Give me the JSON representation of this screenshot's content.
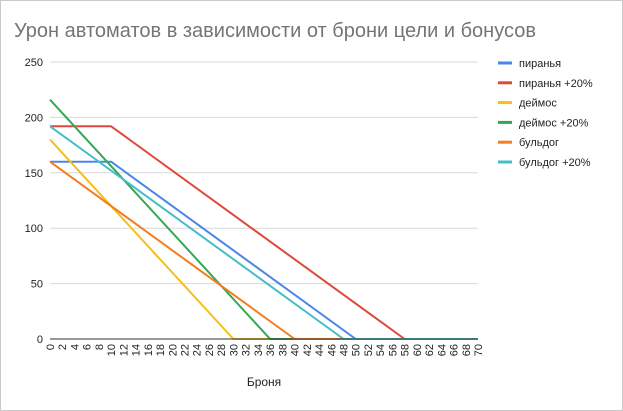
{
  "chart_data": {
    "type": "line",
    "title": "Урон автоматов в зависимости от брони цели и бонусов",
    "xlabel": "Броня",
    "ylabel": "",
    "xlim": [
      0,
      70
    ],
    "ylim": [
      0,
      250
    ],
    "x_ticks": [
      0,
      2,
      4,
      6,
      8,
      10,
      12,
      14,
      16,
      18,
      20,
      22,
      24,
      26,
      28,
      30,
      32,
      34,
      36,
      38,
      40,
      42,
      44,
      46,
      48,
      50,
      52,
      54,
      56,
      58,
      60,
      62,
      64,
      66,
      68,
      70
    ],
    "y_ticks": [
      0,
      50,
      100,
      150,
      200,
      250
    ],
    "grid": true,
    "legend_position": "right",
    "series": [
      {
        "name": "пиранья",
        "color": "#4a86e8",
        "points": [
          [
            0,
            160
          ],
          [
            10,
            160
          ],
          [
            50,
            0
          ],
          [
            70,
            0
          ]
        ]
      },
      {
        "name": "пиранья +20%",
        "color": "#e0483b",
        "points": [
          [
            0,
            192
          ],
          [
            10,
            192
          ],
          [
            58,
            0
          ],
          [
            70,
            0
          ]
        ]
      },
      {
        "name": "деймос",
        "color": "#f4bf1a",
        "points": [
          [
            0,
            180
          ],
          [
            30,
            0
          ],
          [
            70,
            0
          ]
        ]
      },
      {
        "name": "деймос +20%",
        "color": "#33a853",
        "points": [
          [
            0,
            216
          ],
          [
            36,
            0
          ],
          [
            70,
            0
          ]
        ]
      },
      {
        "name": "бульдог",
        "color": "#f57c1f",
        "points": [
          [
            0,
            160
          ],
          [
            40,
            0
          ],
          [
            70,
            0
          ]
        ]
      },
      {
        "name": "бульдог +20%",
        "color": "#46bdc6",
        "points": [
          [
            0,
            192
          ],
          [
            48,
            0
          ],
          [
            70,
            0
          ]
        ]
      }
    ]
  }
}
